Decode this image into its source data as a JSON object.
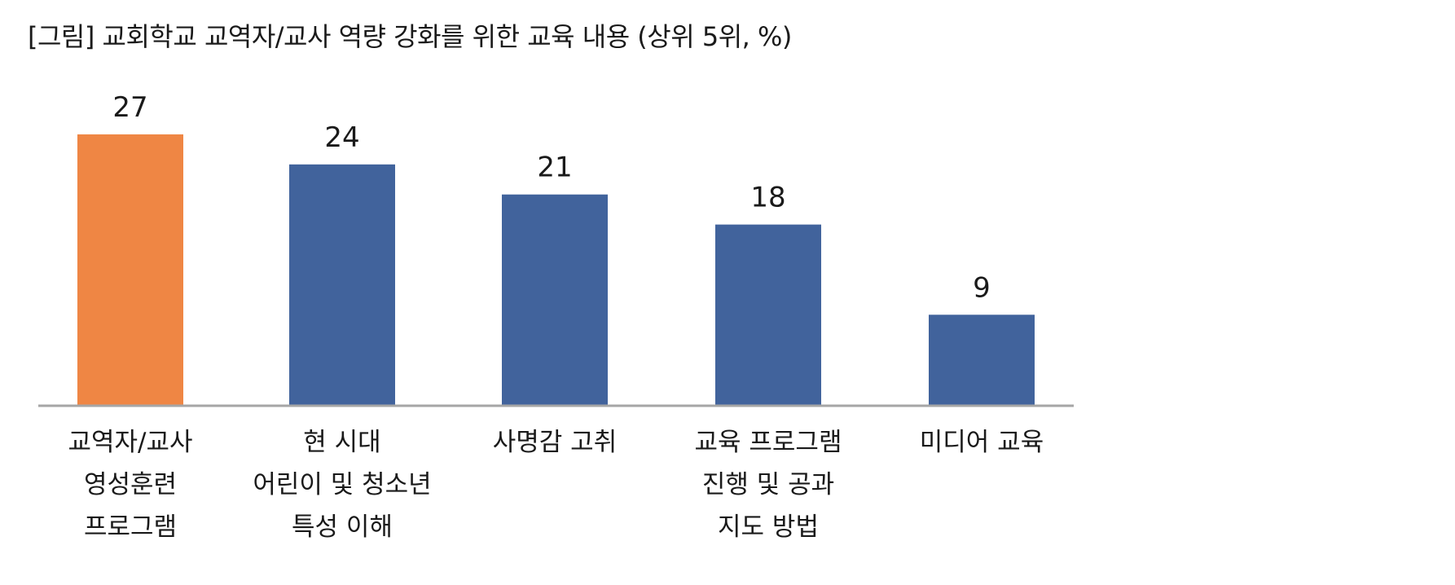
{
  "chart_data": {
    "type": "bar",
    "title": "[그림] 교회학교 교역자/교사 역량 강화를 위한 교육 내용 (상위 5위, %)",
    "categories": [
      [
        "교역자/교사",
        "영성훈련",
        "프로그램"
      ],
      [
        "현 시대",
        "어린이 및 청소년",
        "특성 이해"
      ],
      [
        "사명감 고취"
      ],
      [
        "교육 프로그램",
        "진행 및 공과",
        "지도 방법"
      ],
      [
        "미디어 교육"
      ]
    ],
    "values": [
      27,
      24,
      21,
      18,
      9
    ],
    "highlight_index": 0,
    "colors": {
      "highlight": "#EF8644",
      "default": "#41639C",
      "axis": "#a6a6a6"
    },
    "xlabel": "",
    "ylabel": "",
    "grid": false,
    "legend": "none"
  }
}
